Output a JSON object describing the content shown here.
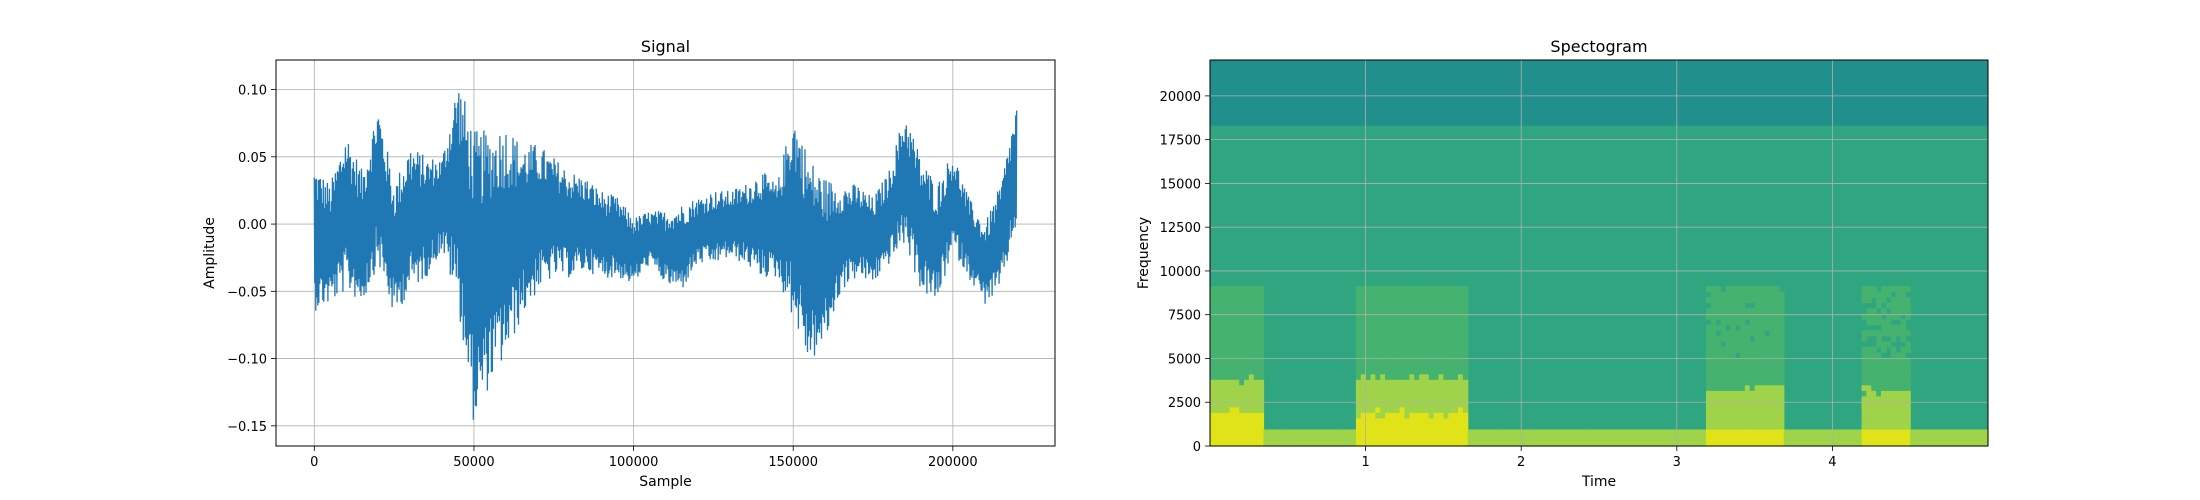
{
  "chart_data": [
    {
      "type": "line",
      "title": "Signal",
      "xlabel": "Sample",
      "ylabel": "Amplitude",
      "xlim": [
        -12000,
        232000
      ],
      "ylim": [
        -0.165,
        0.122
      ],
      "grid": true,
      "color": "#1f77b4",
      "x_ticks": [
        0,
        50000,
        100000,
        150000,
        200000
      ],
      "x_tick_labels": [
        "0",
        "50000",
        "100000",
        "150000",
        "200000"
      ],
      "y_ticks": [
        0.1,
        0.05,
        0.0,
        -0.05,
        -0.1,
        -0.15
      ],
      "y_tick_labels": [
        "0.10",
        "0.05",
        "0.00",
        "−0.05",
        "−0.10",
        "−0.15"
      ],
      "series": [
        {
          "x": [
            0,
            5000,
            10000,
            15000,
            20000,
            25000,
            30000,
            35000,
            40000,
            45000,
            50000,
            55000,
            60000,
            65000,
            70000,
            75000,
            80000,
            85000,
            90000,
            95000,
            100000,
            105000,
            110000,
            115000,
            120000,
            125000,
            130000,
            135000,
            140000,
            145000,
            150000,
            155000,
            160000,
            165000,
            170000,
            175000,
            180000,
            185000,
            190000,
            195000,
            200000,
            205000,
            210000,
            215000,
            220000
          ],
          "upper": [
            0.045,
            0.03,
            0.07,
            0.04,
            0.09,
            0.03,
            0.06,
            0.05,
            0.05,
            0.11,
            0.07,
            0.07,
            0.075,
            0.06,
            0.06,
            0.05,
            0.04,
            0.035,
            0.025,
            0.02,
            0.005,
            0.01,
            0.01,
            0.015,
            0.02,
            0.025,
            0.025,
            0.03,
            0.04,
            0.03,
            0.085,
            0.05,
            0.035,
            0.03,
            0.03,
            0.02,
            0.04,
            0.085,
            0.05,
            0.03,
            0.055,
            0.02,
            0.0,
            0.03,
            0.09
          ],
          "lower": [
            -0.065,
            -0.06,
            -0.05,
            -0.06,
            -0.03,
            -0.07,
            -0.05,
            -0.04,
            -0.02,
            -0.06,
            -0.15,
            -0.12,
            -0.1,
            -0.07,
            -0.05,
            -0.04,
            -0.04,
            -0.035,
            -0.04,
            -0.04,
            -0.045,
            -0.03,
            -0.045,
            -0.05,
            -0.03,
            -0.03,
            -0.025,
            -0.03,
            -0.04,
            -0.04,
            -0.07,
            -0.105,
            -0.09,
            -0.05,
            -0.04,
            -0.045,
            -0.03,
            -0.015,
            -0.05,
            -0.06,
            -0.02,
            -0.04,
            -0.06,
            -0.05,
            0.0
          ]
        }
      ]
    },
    {
      "type": "heatmap",
      "title": "Spectogram",
      "xlabel": "Time",
      "ylabel": "Frequency",
      "xlim": [
        0,
        5
      ],
      "ylim": [
        0,
        22050
      ],
      "grid": true,
      "x_ticks": [
        1,
        2,
        3,
        4
      ],
      "x_tick_labels": [
        "1",
        "2",
        "3",
        "4"
      ],
      "y_ticks": [
        0,
        2500,
        5000,
        7500,
        10000,
        12500,
        15000,
        17500,
        20000
      ],
      "y_tick_labels": [
        "0",
        "2500",
        "5000",
        "7500",
        "10000",
        "12500",
        "15000",
        "17500",
        "20000"
      ],
      "colors": {
        "band_top": "#21908d",
        "body": "#2fa67f",
        "mid": "#45b26f",
        "hot": "#9fd34a",
        "peak": "#dfe318"
      }
    }
  ]
}
